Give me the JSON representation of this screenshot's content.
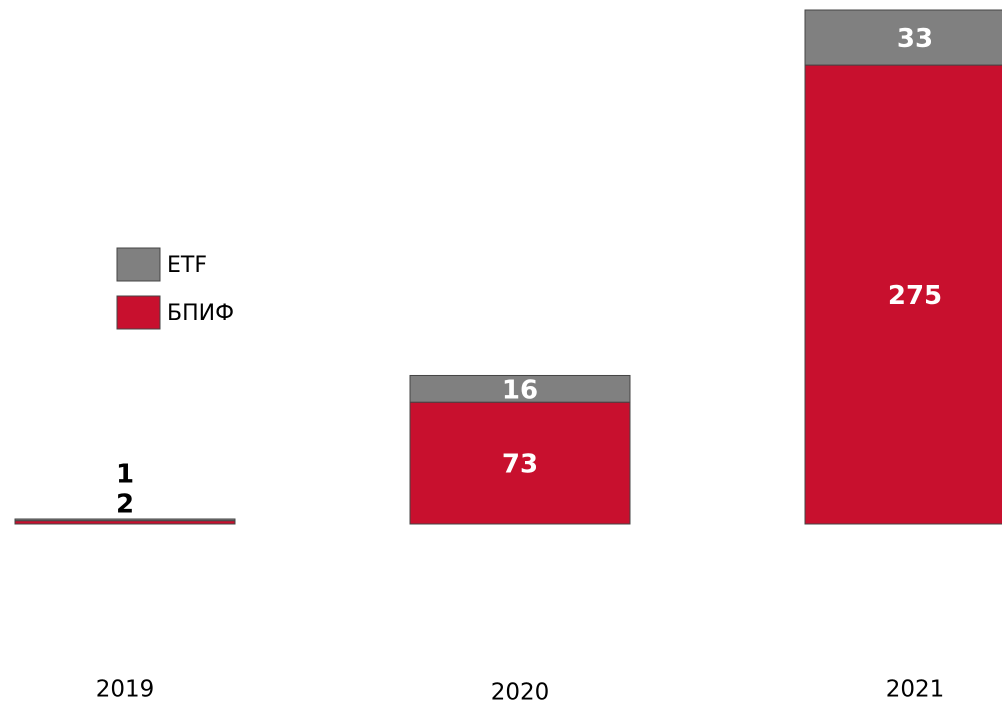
{
  "chart_data": {
    "type": "stacked_bar",
    "categories": [
      "2019",
      "2020",
      "2021"
    ],
    "series": [
      {
        "name": "БПИФ",
        "color": "#c8102e",
        "values": [
          2,
          73,
          275
        ]
      },
      {
        "name": "ETF",
        "color": "#808080",
        "values": [
          1,
          16,
          33
        ]
      }
    ],
    "ylim": [
      0,
      308
    ],
    "grid": false,
    "legend": "left"
  }
}
